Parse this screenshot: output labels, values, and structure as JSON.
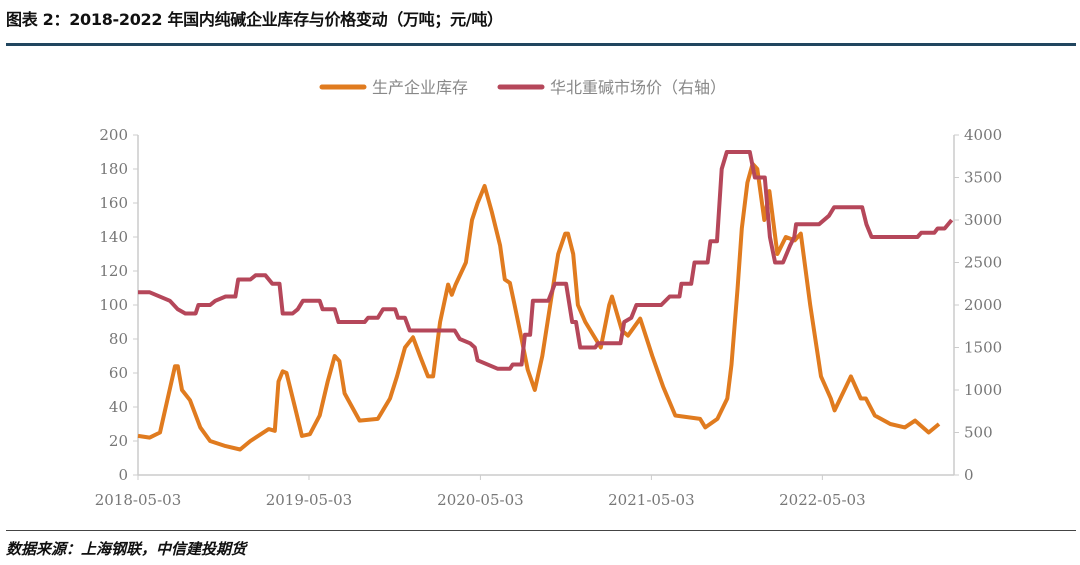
{
  "title": "图表 2：2018-2022 年国内纯碱企业库存与价格变动（万吨；元/吨）",
  "source": "数据来源：上海钢联，中信建投期货",
  "chart_data": {
    "type": "line",
    "title": "图表 2：2018-2022 年国内纯碱企业库存与价格变动（万吨；元/吨）",
    "xlabel": "",
    "ylabel": "",
    "x_ticks": [
      "2018-05-03",
      "2019-05-03",
      "2020-05-03",
      "2021-05-03",
      "2022-05-03"
    ],
    "xlim": [
      "2018-05-03",
      "2023-02-08"
    ],
    "ylim_left": [
      0,
      200
    ],
    "ylim_right": [
      0,
      4000
    ],
    "y_ticks_left": [
      "0",
      "20",
      "40",
      "60",
      "80",
      "100",
      "120",
      "140",
      "160",
      "180",
      "200"
    ],
    "y_ticks_right": [
      "0",
      "500",
      "1000",
      "1500",
      "2000",
      "2500",
      "3000",
      "3500",
      "4000"
    ],
    "grid": false,
    "legend_position": "top",
    "series": [
      {
        "name": "生产企业库存",
        "axis": "left",
        "color": "#e07b1f",
        "points": [
          [
            "2018-05-03",
            23
          ],
          [
            "2018-05-28",
            22
          ],
          [
            "2018-06-19",
            25
          ],
          [
            "2018-07-21",
            64
          ],
          [
            "2018-07-27",
            64
          ],
          [
            "2018-08-05",
            50
          ],
          [
            "2018-08-22",
            44
          ],
          [
            "2018-09-13",
            28
          ],
          [
            "2018-10-04",
            20
          ],
          [
            "2018-11-06",
            17
          ],
          [
            "2018-12-07",
            15
          ],
          [
            "2018-12-29",
            20
          ],
          [
            "2019-02-06",
            27
          ],
          [
            "2019-02-19",
            26
          ],
          [
            "2019-02-27",
            55
          ],
          [
            "2019-03-08",
            61
          ],
          [
            "2019-03-16",
            60
          ],
          [
            "2019-04-03",
            40
          ],
          [
            "2019-04-18",
            23
          ],
          [
            "2019-05-05",
            24
          ],
          [
            "2019-05-26",
            35
          ],
          [
            "2019-06-12",
            55
          ],
          [
            "2019-06-27",
            70
          ],
          [
            "2019-07-07",
            67
          ],
          [
            "2019-07-18",
            48
          ],
          [
            "2019-08-09",
            37
          ],
          [
            "2019-08-19",
            32
          ],
          [
            "2019-09-27",
            33
          ],
          [
            "2019-10-23",
            45
          ],
          [
            "2019-11-07",
            58
          ],
          [
            "2019-11-24",
            75
          ],
          [
            "2019-12-11",
            81
          ],
          [
            "2019-12-26",
            70
          ],
          [
            "2020-01-12",
            58
          ],
          [
            "2020-01-23",
            58
          ],
          [
            "2020-02-07",
            90
          ],
          [
            "2020-02-24",
            112
          ],
          [
            "2020-03-03",
            106
          ],
          [
            "2020-03-11",
            112
          ],
          [
            "2020-04-02",
            125
          ],
          [
            "2020-04-15",
            150
          ],
          [
            "2020-04-27",
            160
          ],
          [
            "2020-05-12",
            170
          ],
          [
            "2020-05-27",
            155
          ],
          [
            "2020-06-14",
            135
          ],
          [
            "2020-06-24",
            115
          ],
          [
            "2020-07-05",
            113
          ],
          [
            "2020-07-15",
            100
          ],
          [
            "2020-07-30",
            80
          ],
          [
            "2020-08-12",
            62
          ],
          [
            "2020-08-27",
            50
          ],
          [
            "2020-09-12",
            70
          ],
          [
            "2020-09-29",
            100
          ],
          [
            "2020-10-16",
            130
          ],
          [
            "2020-10-31",
            142
          ],
          [
            "2020-11-06",
            142
          ],
          [
            "2020-11-17",
            130
          ],
          [
            "2020-11-27",
            100
          ],
          [
            "2020-12-13",
            90
          ],
          [
            "2021-01-15",
            75
          ],
          [
            "2021-02-02",
            100
          ],
          [
            "2021-02-08",
            105
          ],
          [
            "2021-03-01",
            85
          ],
          [
            "2021-03-14",
            82
          ],
          [
            "2021-04-09",
            92
          ],
          [
            "2021-05-05",
            70
          ],
          [
            "2021-05-28",
            52
          ],
          [
            "2021-06-23",
            35
          ],
          [
            "2021-08-15",
            33
          ],
          [
            "2021-08-26",
            28
          ],
          [
            "2021-09-21",
            33
          ],
          [
            "2021-10-12",
            45
          ],
          [
            "2021-10-21",
            65
          ],
          [
            "2021-11-03",
            110
          ],
          [
            "2021-11-12",
            145
          ],
          [
            "2021-11-24",
            172
          ],
          [
            "2021-12-05",
            183
          ],
          [
            "2021-12-15",
            180
          ],
          [
            "2021-12-30",
            150
          ],
          [
            "2022-01-10",
            167
          ],
          [
            "2022-01-27",
            130
          ],
          [
            "2022-02-14",
            140
          ],
          [
            "2022-03-05",
            138
          ],
          [
            "2022-03-18",
            142
          ],
          [
            "2022-04-07",
            100
          ],
          [
            "2022-04-30",
            58
          ],
          [
            "2022-05-21",
            45
          ],
          [
            "2022-05-29",
            38
          ],
          [
            "2022-07-03",
            58
          ],
          [
            "2022-07-24",
            45
          ],
          [
            "2022-08-04",
            45
          ],
          [
            "2022-08-23",
            35
          ],
          [
            "2022-09-25",
            30
          ],
          [
            "2022-10-26",
            28
          ],
          [
            "2022-11-17",
            32
          ],
          [
            "2022-12-16",
            25
          ],
          [
            "2023-01-07",
            30
          ]
        ]
      },
      {
        "name": "华北重碱市场价（右轴）",
        "axis": "right",
        "color": "#b5475a",
        "points": [
          [
            "2018-05-03",
            2150
          ],
          [
            "2018-05-28",
            2150
          ],
          [
            "2018-07-10",
            2050
          ],
          [
            "2018-07-27",
            1950
          ],
          [
            "2018-08-12",
            1900
          ],
          [
            "2018-09-03",
            1900
          ],
          [
            "2018-09-09",
            2000
          ],
          [
            "2018-10-04",
            2000
          ],
          [
            "2018-10-15",
            2050
          ],
          [
            "2018-11-06",
            2100
          ],
          [
            "2018-11-27",
            2100
          ],
          [
            "2018-12-03",
            2300
          ],
          [
            "2018-12-29",
            2300
          ],
          [
            "2019-01-09",
            2350
          ],
          [
            "2019-01-30",
            2350
          ],
          [
            "2019-02-14",
            2250
          ],
          [
            "2019-03-01",
            2250
          ],
          [
            "2019-03-08",
            1900
          ],
          [
            "2019-03-29",
            1900
          ],
          [
            "2019-04-09",
            1950
          ],
          [
            "2019-04-20",
            2050
          ],
          [
            "2019-05-26",
            2050
          ],
          [
            "2019-06-01",
            1950
          ],
          [
            "2019-06-27",
            1950
          ],
          [
            "2019-07-05",
            1800
          ],
          [
            "2019-08-30",
            1800
          ],
          [
            "2019-09-06",
            1850
          ],
          [
            "2019-09-27",
            1850
          ],
          [
            "2019-10-08",
            1950
          ],
          [
            "2019-11-03",
            1950
          ],
          [
            "2019-11-09",
            1850
          ],
          [
            "2019-11-24",
            1850
          ],
          [
            "2019-12-04",
            1700
          ],
          [
            "2020-03-09",
            1700
          ],
          [
            "2020-03-20",
            1600
          ],
          [
            "2020-04-11",
            1550
          ],
          [
            "2020-04-21",
            1500
          ],
          [
            "2020-04-27",
            1350
          ],
          [
            "2020-06-09",
            1250
          ],
          [
            "2020-07-05",
            1250
          ],
          [
            "2020-07-11",
            1300
          ],
          [
            "2020-07-30",
            1300
          ],
          [
            "2020-08-06",
            1650
          ],
          [
            "2020-08-17",
            1650
          ],
          [
            "2020-08-23",
            2050
          ],
          [
            "2020-09-25",
            2050
          ],
          [
            "2020-10-09",
            2250
          ],
          [
            "2020-11-02",
            2250
          ],
          [
            "2020-11-15",
            1800
          ],
          [
            "2020-11-23",
            1800
          ],
          [
            "2020-12-02",
            1500
          ],
          [
            "2021-01-03",
            1500
          ],
          [
            "2021-01-09",
            1550
          ],
          [
            "2021-02-26",
            1550
          ],
          [
            "2021-03-06",
            1800
          ],
          [
            "2021-03-21",
            1850
          ],
          [
            "2021-04-01",
            2000
          ],
          [
            "2021-05-24",
            2000
          ],
          [
            "2021-06-11",
            2100
          ],
          [
            "2021-07-02",
            2100
          ],
          [
            "2021-07-06",
            2250
          ],
          [
            "2021-07-27",
            2250
          ],
          [
            "2021-08-03",
            2500
          ],
          [
            "2021-08-31",
            2500
          ],
          [
            "2021-09-06",
            2750
          ],
          [
            "2021-09-20",
            2750
          ],
          [
            "2021-09-30",
            3600
          ],
          [
            "2021-10-11",
            3800
          ],
          [
            "2021-11-29",
            3800
          ],
          [
            "2021-12-10",
            3500
          ],
          [
            "2021-12-31",
            3500
          ],
          [
            "2022-01-11",
            2800
          ],
          [
            "2022-01-22",
            2500
          ],
          [
            "2022-02-08",
            2500
          ],
          [
            "2022-02-23",
            2700
          ],
          [
            "2022-03-04",
            2800
          ],
          [
            "2022-03-08",
            2950
          ],
          [
            "2022-04-26",
            2950
          ],
          [
            "2022-05-17",
            3050
          ],
          [
            "2022-05-28",
            3150
          ],
          [
            "2022-07-27",
            3150
          ],
          [
            "2022-08-05",
            2950
          ],
          [
            "2022-08-16",
            2800
          ],
          [
            "2022-11-22",
            2800
          ],
          [
            "2022-11-30",
            2850
          ],
          [
            "2022-12-28",
            2850
          ],
          [
            "2023-01-04",
            2900
          ],
          [
            "2023-01-19",
            2900
          ],
          [
            "2023-02-03",
            3000
          ]
        ]
      }
    ]
  }
}
